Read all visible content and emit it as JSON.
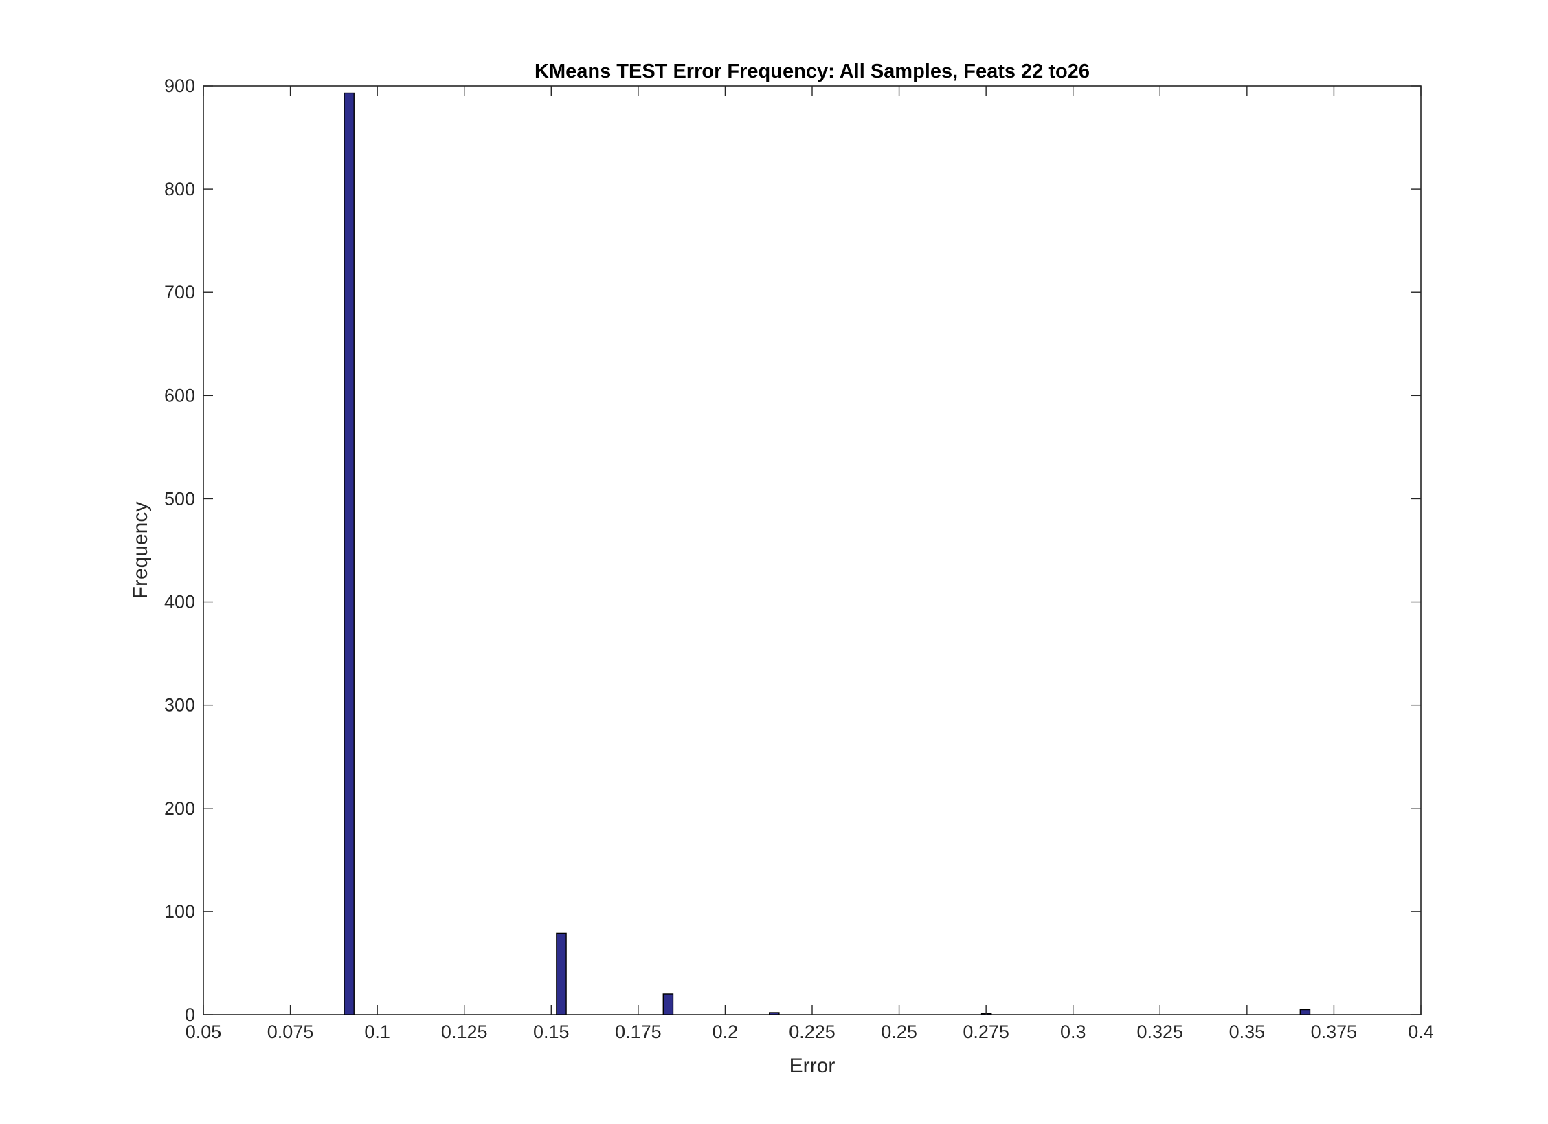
{
  "chart_data": {
    "type": "bar",
    "title": "KMeans TEST Error Frequency: All Samples, Feats 22 to26",
    "xlabel": "Error",
    "ylabel": "Frequency",
    "xlim": [
      0.05,
      0.4
    ],
    "ylim": [
      0,
      900
    ],
    "xticks": [
      0.05,
      0.075,
      0.1,
      0.125,
      0.15,
      0.175,
      0.2,
      0.225,
      0.25,
      0.275,
      0.3,
      0.325,
      0.35,
      0.375,
      0.4
    ],
    "xtick_labels": [
      "0.05",
      "0.075",
      "0.1",
      "0.125",
      "0.15",
      "0.175",
      "0.2",
      "0.225",
      "0.25",
      "0.275",
      "0.3",
      "0.325",
      "0.35",
      "0.375",
      "0.4"
    ],
    "yticks": [
      0,
      100,
      200,
      300,
      400,
      500,
      600,
      700,
      800,
      900
    ],
    "ytick_labels": [
      "0",
      "100",
      "200",
      "300",
      "400",
      "500",
      "600",
      "700",
      "800",
      "900"
    ],
    "grid": false,
    "bar_width": 0.0028,
    "bar_color": "#2e2e8c",
    "bar_edge_color": "#000000",
    "bars": [
      {
        "x": 0.0919,
        "value": 893
      },
      {
        "x": 0.1529,
        "value": 79
      },
      {
        "x": 0.1836,
        "value": 20
      },
      {
        "x": 0.2141,
        "value": 2
      },
      {
        "x": 0.2751,
        "value": 1
      },
      {
        "x": 0.3667,
        "value": 5
      }
    ]
  }
}
